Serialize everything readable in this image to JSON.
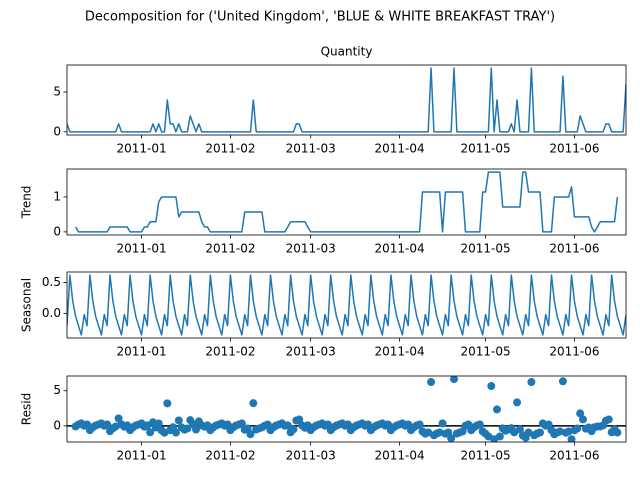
{
  "title": "Decomposition for ('United Kingdom', 'BLUE & WHITE BREAKFAST TRAY')",
  "chart_data": [
    {
      "type": "line",
      "title": "Quantity",
      "color": "#1f77b4",
      "x": [
        "2010-12-06",
        "2010-12-07",
        "2010-12-08",
        "2010-12-09",
        "2010-12-10",
        "2010-12-11",
        "2010-12-12",
        "2010-12-13",
        "2010-12-14",
        "2010-12-15",
        "2010-12-16",
        "2010-12-17",
        "2010-12-18",
        "2010-12-19",
        "2010-12-20",
        "2010-12-21",
        "2010-12-22",
        "2010-12-23",
        "2010-12-24",
        "2010-12-25",
        "2010-12-26",
        "2010-12-27",
        "2010-12-28",
        "2010-12-29",
        "2010-12-30",
        "2010-12-31",
        "2011-01-01",
        "2011-01-02",
        "2011-01-03",
        "2011-01-04",
        "2011-01-05",
        "2011-01-06",
        "2011-01-07",
        "2011-01-08",
        "2011-01-09",
        "2011-01-10",
        "2011-01-11",
        "2011-01-12",
        "2011-01-13",
        "2011-01-14",
        "2011-01-15",
        "2011-01-16",
        "2011-01-17",
        "2011-01-18",
        "2011-01-19",
        "2011-01-20",
        "2011-01-21",
        "2011-01-22",
        "2011-01-23",
        "2011-01-24",
        "2011-01-25",
        "2011-01-26",
        "2011-01-27",
        "2011-01-28",
        "2011-01-29",
        "2011-01-30",
        "2011-01-31",
        "2011-02-01",
        "2011-02-02",
        "2011-02-03",
        "2011-02-04",
        "2011-02-05",
        "2011-02-06",
        "2011-02-07",
        "2011-02-08",
        "2011-02-09",
        "2011-02-10",
        "2011-02-11",
        "2011-02-12",
        "2011-02-13",
        "2011-02-14",
        "2011-02-15",
        "2011-02-16",
        "2011-02-17",
        "2011-02-18",
        "2011-02-19",
        "2011-02-20",
        "2011-02-21",
        "2011-02-22",
        "2011-02-23",
        "2011-02-24",
        "2011-02-25",
        "2011-02-26",
        "2011-02-27",
        "2011-02-28",
        "2011-03-01",
        "2011-03-02",
        "2011-03-03",
        "2011-03-04",
        "2011-03-05",
        "2011-03-06",
        "2011-03-07",
        "2011-03-08",
        "2011-03-09",
        "2011-03-10",
        "2011-03-11",
        "2011-03-12",
        "2011-03-13",
        "2011-03-14",
        "2011-03-15",
        "2011-03-16",
        "2011-03-17",
        "2011-03-18",
        "2011-03-19",
        "2011-03-20",
        "2011-03-21",
        "2011-03-22",
        "2011-03-23",
        "2011-03-24",
        "2011-03-25",
        "2011-03-26",
        "2011-03-27",
        "2011-03-28",
        "2011-03-29",
        "2011-03-30",
        "2011-03-31",
        "2011-04-01",
        "2011-04-02",
        "2011-04-03",
        "2011-04-04",
        "2011-04-05",
        "2011-04-06",
        "2011-04-07",
        "2011-04-08",
        "2011-04-09",
        "2011-04-10",
        "2011-04-11",
        "2011-04-12",
        "2011-04-13",
        "2011-04-14",
        "2011-04-15",
        "2011-04-16",
        "2011-04-17",
        "2011-04-18",
        "2011-04-19",
        "2011-04-20",
        "2011-04-21",
        "2011-04-22",
        "2011-04-23",
        "2011-04-24",
        "2011-04-25",
        "2011-04-26",
        "2011-04-27",
        "2011-04-28",
        "2011-04-29",
        "2011-04-30",
        "2011-05-01",
        "2011-05-02",
        "2011-05-03",
        "2011-05-04",
        "2011-05-05",
        "2011-05-06",
        "2011-05-07",
        "2011-05-08",
        "2011-05-09",
        "2011-05-10",
        "2011-05-11",
        "2011-05-12",
        "2011-05-13",
        "2011-05-14",
        "2011-05-15",
        "2011-05-16",
        "2011-05-17",
        "2011-05-18",
        "2011-05-19",
        "2011-05-20",
        "2011-05-21",
        "2011-05-22",
        "2011-05-23",
        "2011-05-24",
        "2011-05-25",
        "2011-05-26",
        "2011-05-27",
        "2011-05-28",
        "2011-05-29",
        "2011-05-30",
        "2011-05-31",
        "2011-06-01",
        "2011-06-02",
        "2011-06-03",
        "2011-06-04",
        "2011-06-05",
        "2011-06-06",
        "2011-06-07",
        "2011-06-08",
        "2011-06-09",
        "2011-06-10",
        "2011-06-11",
        "2011-06-12",
        "2011-06-13",
        "2011-06-14",
        "2011-06-15",
        "2011-06-16",
        "2011-06-17",
        "2011-06-18",
        "2011-06-19"
      ],
      "xlim": [
        "2010-12-06",
        "2011-06-19"
      ],
      "xticks": [
        {
          "value": "2011-01-01",
          "label": "2011-01"
        },
        {
          "value": "2011-02-01",
          "label": "2011-02"
        },
        {
          "value": "2011-03-01",
          "label": "2011-03"
        },
        {
          "value": "2011-04-01",
          "label": "2011-04"
        },
        {
          "value": "2011-05-01",
          "label": "2011-05"
        },
        {
          "value": "2011-06-01",
          "label": "2011-06"
        }
      ],
      "ylim": [
        -0.4,
        8.4
      ],
      "yticks": [
        0,
        5
      ],
      "values": [
        1,
        0,
        0,
        0,
        0,
        0,
        0,
        0,
        0,
        0,
        0,
        0,
        0,
        0,
        0,
        0,
        0,
        0,
        1,
        0,
        0,
        0,
        0,
        0,
        0,
        0,
        0,
        0,
        0,
        0,
        1,
        0,
        1,
        0,
        0,
        4,
        1,
        1,
        0,
        1,
        0,
        0,
        0,
        2,
        1,
        0,
        1,
        0,
        0,
        0,
        0,
        0,
        0,
        0,
        0,
        0,
        0,
        0,
        0,
        0,
        0,
        0,
        0,
        0,
        0,
        4,
        0,
        0,
        0,
        0,
        0,
        0,
        0,
        0,
        0,
        0,
        0,
        0,
        0,
        0,
        1,
        1,
        0,
        0,
        0,
        0,
        0,
        0,
        0,
        0,
        0,
        0,
        0,
        0,
        0,
        0,
        0,
        0,
        0,
        0,
        0,
        0,
        0,
        0,
        0,
        0,
        0,
        0,
        0,
        0,
        0,
        0,
        0,
        0,
        0,
        0,
        0,
        0,
        0,
        0,
        0,
        0,
        0,
        0,
        0,
        0,
        0,
        8,
        0,
        0,
        0,
        0,
        0,
        0,
        0,
        8,
        0,
        0,
        0,
        0,
        0,
        0,
        0,
        0,
        0,
        0,
        0,
        0,
        8,
        0,
        4,
        0,
        0,
        0,
        0,
        1,
        0,
        4,
        0,
        0,
        0,
        0,
        8,
        0,
        0,
        0,
        0,
        0,
        0,
        0,
        0,
        0,
        0,
        7,
        0,
        0,
        0,
        0,
        0,
        2,
        1,
        0,
        0,
        0,
        0,
        0,
        0,
        0,
        1,
        1,
        0,
        0,
        0,
        0,
        0,
        6
      ]
    },
    {
      "type": "line",
      "ylabel": "Trend",
      "color": "#1f77b4",
      "ylim": [
        -0.09,
        1.8
      ],
      "yticks": [
        0,
        1
      ],
      "values": [
        null,
        null,
        null,
        0.14,
        0,
        0,
        0,
        0,
        0,
        0,
        0,
        0,
        0,
        0,
        0,
        0.14,
        0.14,
        0.14,
        0.14,
        0.14,
        0.14,
        0.14,
        0,
        0,
        0,
        0,
        0,
        0.14,
        0.14,
        0.29,
        0.29,
        0.29,
        0.86,
        1,
        1,
        1,
        1,
        1,
        1,
        0.43,
        0.57,
        0.57,
        0.57,
        0.57,
        0.57,
        0.57,
        0.57,
        0.29,
        0.14,
        0.14,
        0,
        0,
        0,
        0,
        0,
        0,
        0,
        0,
        0,
        0,
        0,
        0,
        0.57,
        0.57,
        0.57,
        0.57,
        0.57,
        0.57,
        0.57,
        0,
        0,
        0,
        0,
        0,
        0,
        0,
        0,
        0.14,
        0.29,
        0.29,
        0.29,
        0.29,
        0.29,
        0.29,
        0.14,
        0,
        0,
        0,
        0,
        0,
        0,
        0,
        0,
        0,
        0,
        0,
        0,
        0,
        0,
        0,
        0,
        0,
        0,
        0,
        0,
        0,
        0,
        0,
        0,
        0,
        0,
        0,
        0,
        0,
        0,
        0,
        0,
        0,
        0,
        0,
        0,
        0,
        0,
        0,
        1.14,
        1.14,
        1.14,
        1.14,
        1.14,
        1.14,
        1.14,
        0,
        1.14,
        1.14,
        1.14,
        1.14,
        1.14,
        1.14,
        1.14,
        0,
        0,
        0,
        0,
        0,
        0,
        1.14,
        1.14,
        1.71,
        1.71,
        1.71,
        1.71,
        1.71,
        0.71,
        0.71,
        0.71,
        0.71,
        0.71,
        0.71,
        0.71,
        1.71,
        1.71,
        1.14,
        1.14,
        1.14,
        1.14,
        1.14,
        0,
        0,
        0,
        0,
        1,
        1,
        1,
        1,
        1,
        1,
        1.29,
        0.43,
        0.43,
        0.43,
        0.43,
        0.43,
        0.43,
        0.14,
        0,
        0.14,
        0.29,
        0.29,
        0.29,
        0.29,
        0.29,
        0.29,
        1,
        null,
        null,
        null
      ]
    },
    {
      "type": "line",
      "ylabel": "Seasonal",
      "color": "#1f77b4",
      "ylim": [
        -0.4,
        0.67
      ],
      "yticks": [
        {
          "value": 0,
          "label": "0.0"
        },
        {
          "value": 0.5,
          "label": "0.5"
        }
      ],
      "values": [
        -0.2,
        0.62,
        0.2,
        -0.05,
        -0.2,
        -0.35,
        -0.02,
        -0.2,
        0.62,
        0.2,
        -0.05,
        -0.2,
        -0.35,
        -0.02,
        -0.2,
        0.62,
        0.2,
        -0.05,
        -0.2,
        -0.35,
        -0.02,
        -0.2,
        0.62,
        0.2,
        -0.05,
        -0.2,
        -0.35,
        -0.02,
        -0.2,
        0.62,
        0.2,
        -0.05,
        -0.2,
        -0.35,
        -0.02,
        -0.2,
        0.62,
        0.2,
        -0.05,
        -0.2,
        -0.35,
        -0.02,
        -0.2,
        0.62,
        0.2,
        -0.05,
        -0.2,
        -0.35,
        -0.02,
        -0.2,
        0.62,
        0.2,
        -0.05,
        -0.2,
        -0.35,
        -0.02,
        -0.2,
        0.62,
        0.2,
        -0.05,
        -0.2,
        -0.35,
        -0.02,
        -0.2,
        0.62,
        0.2,
        -0.05,
        -0.2,
        -0.35,
        -0.02,
        -0.2,
        0.62,
        0.2,
        -0.05,
        -0.2,
        -0.35,
        -0.02,
        -0.2,
        0.62,
        0.2,
        -0.05,
        -0.2,
        -0.35,
        -0.02,
        -0.2,
        0.62,
        0.2,
        -0.05,
        -0.2,
        -0.35,
        -0.02,
        -0.2,
        0.62,
        0.2,
        -0.05,
        -0.2,
        -0.35,
        -0.02,
        -0.2,
        0.62,
        0.2,
        -0.05,
        -0.2,
        -0.35,
        -0.02,
        -0.2,
        0.62,
        0.2,
        -0.05,
        -0.2,
        -0.35,
        -0.02,
        -0.2,
        0.62,
        0.2,
        -0.05,
        -0.2,
        -0.35,
        -0.02,
        -0.2,
        0.62,
        0.2,
        -0.05,
        -0.2,
        -0.35,
        -0.02,
        -0.2,
        0.62,
        0.2,
        -0.05,
        -0.2,
        -0.35,
        -0.02,
        -0.2,
        0.62,
        0.2,
        -0.05,
        -0.2,
        -0.35,
        -0.02,
        -0.2,
        0.62,
        0.2,
        -0.05,
        -0.2,
        -0.35,
        -0.02,
        -0.2,
        0.62,
        0.2,
        -0.05,
        -0.2,
        -0.35,
        -0.02,
        -0.2,
        0.62,
        0.2,
        -0.05,
        -0.2,
        -0.35,
        -0.02,
        -0.2,
        0.62,
        0.2,
        -0.05,
        -0.2,
        -0.35,
        -0.02,
        -0.2,
        0.62,
        0.2,
        -0.05,
        -0.2,
        -0.35,
        -0.02,
        -0.2,
        0.62,
        0.2,
        -0.05,
        -0.2,
        -0.35,
        -0.02,
        -0.2,
        0.62,
        0.2,
        -0.05,
        -0.2,
        -0.35,
        -0.02,
        -0.2,
        0.62,
        0.2,
        -0.05,
        -0.2,
        -0.35,
        -0.02
      ]
    },
    {
      "type": "scatter",
      "ylabel": "Resid",
      "color": "#1f77b4",
      "ylim": [
        -2.3,
        7.1
      ],
      "yticks": [
        0,
        5
      ],
      "baseline": 0,
      "values": [
        null,
        null,
        null,
        -0.09,
        0.2,
        0.35,
        0.02,
        0.2,
        -0.62,
        -0.2,
        0.05,
        0.2,
        0.35,
        0.02,
        0.2,
        -0.76,
        -0.34,
        -0.09,
        1.06,
        0.21,
        -0.12,
        0.06,
        -0.62,
        -0.2,
        0.05,
        0.2,
        0.35,
        -0.12,
        0.06,
        -0.91,
        0.51,
        -0.24,
        0.34,
        -0.65,
        -0.98,
        3.2,
        -0.62,
        -0.2,
        -0.95,
        0.77,
        -0.22,
        -0.55,
        -0.37,
        0.81,
        0.23,
        -0.52,
        0.63,
        0.06,
        -0.12,
        0.06,
        -0.62,
        -0.2,
        0.05,
        0.2,
        0.35,
        0.02,
        0.2,
        -0.62,
        -0.2,
        0.05,
        0.2,
        0.35,
        -0.55,
        -0.37,
        -1.19,
        3.23,
        -0.52,
        -0.37,
        -0.22,
        0.02,
        0.2,
        -0.62,
        -0.2,
        0.05,
        0.2,
        0.35,
        0.02,
        0.06,
        -0.91,
        -0.49,
        0.76,
        0.91,
        0.06,
        -0.27,
        0.06,
        -0.62,
        -0.2,
        0.05,
        0.2,
        0.35,
        0.02,
        0.2,
        -0.62,
        -0.2,
        0.05,
        0.2,
        0.35,
        0.02,
        0.2,
        -0.62,
        -0.2,
        0.05,
        0.2,
        0.35,
        0.02,
        0.2,
        -0.62,
        -0.2,
        0.05,
        0.2,
        0.35,
        0.02,
        0.2,
        -0.62,
        -0.2,
        0.05,
        0.2,
        0.35,
        0.02,
        0.2,
        -0.62,
        -0.2,
        0.05,
        0.2,
        -0.79,
        -1.12,
        -0.94,
        6.24,
        -1.34,
        -1.09,
        -0.94,
        0.35,
        -1.12,
        -0.94,
        -1.76,
        6.66,
        -1.09,
        -0.94,
        -0.79,
        0.02,
        0.2,
        -0.62,
        -0.2,
        0.05,
        0.2,
        -0.79,
        -1.12,
        -1.51,
        5.67,
        -1.91,
        2.34,
        -1.51,
        -0.36,
        -0.69,
        -0.51,
        -0.33,
        -0.91,
        3.34,
        -0.51,
        -1.36,
        -1.69,
        -0.94,
        6.24,
        -1.34,
        -1.09,
        -0.94,
        0.35,
        0.02,
        0.2,
        -0.62,
        -1.2,
        -0.95,
        -0.8,
        6.35,
        -0.98,
        -0.8,
        -1.91,
        -0.63,
        -0.38,
        1.77,
        0.92,
        -0.41,
        -0.23,
        -0.76,
        -0.2,
        -0.09,
        -0.09,
        0.06,
        0.73,
        0.91,
        -0.91,
        -0.49,
        -0.95,
        null,
        null,
        null
      ]
    }
  ]
}
